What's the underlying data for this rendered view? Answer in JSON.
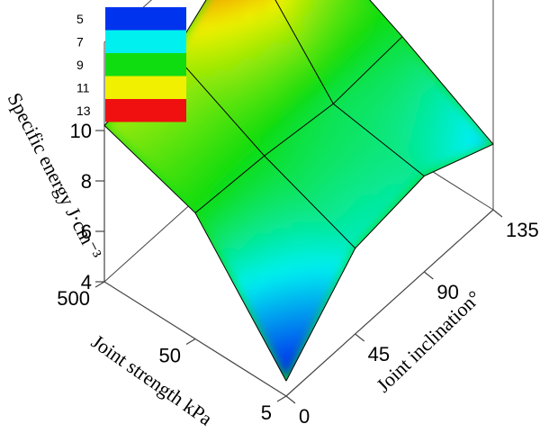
{
  "chart_data": {
    "type": "surface3d",
    "x_axis": {
      "label": "Joint inclination°",
      "ticks": [
        "0",
        "45",
        "90",
        "135"
      ],
      "values": [
        0,
        45,
        90,
        135
      ]
    },
    "y_axis": {
      "label": "Joint strength kPa",
      "ticks": [
        "5",
        "50",
        "500"
      ],
      "values": [
        5,
        50,
        500
      ]
    },
    "z_axis": {
      "label": "Specific energy J·cm⁻³",
      "ticks": [
        "4",
        "6",
        "8",
        "10"
      ],
      "range": [
        4,
        10
      ]
    },
    "z_values": [
      [
        4.6,
        7.4,
        7.8,
        6.6
      ],
      [
        9.0,
        8.8,
        8.4,
        8.6
      ],
      [
        10.2,
        10.6,
        12.6,
        10.4
      ]
    ],
    "colorbar": {
      "labels": [
        "5",
        "7",
        "9",
        "11",
        "13"
      ],
      "colors": [
        "#0033ee",
        "#00f0f0",
        "#10dd10",
        "#f0f000",
        "#f01010"
      ]
    }
  }
}
